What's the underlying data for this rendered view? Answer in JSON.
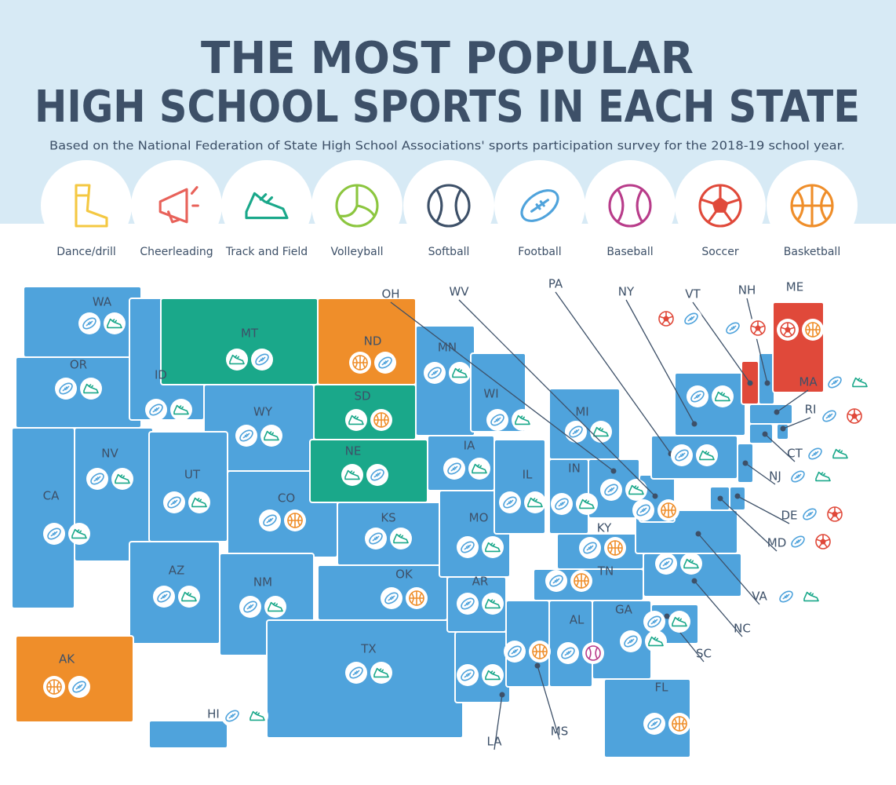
{
  "title": [
    "THE MOST POPULAR",
    "HIGH SCHOOL SPORTS IN EACH STATE"
  ],
  "subtitle": "Based on the National Federation of State High School Associations' sports participation survey for the 2018-19 school year.",
  "legend": [
    {
      "label": "Dance/drill",
      "color": "#f4c842"
    },
    {
      "label": "Cheerleading",
      "color": "#e8625a"
    },
    {
      "label": "Track and Field",
      "color": "#1aa88a"
    },
    {
      "label": "Volleyball",
      "color": "#8cc63f"
    },
    {
      "label": "Softball",
      "color": "#3d5068"
    },
    {
      "label": "Football",
      "color": "#4fa3dc"
    },
    {
      "label": "Baseball",
      "color": "#b83c8a"
    },
    {
      "label": "Soccer",
      "color": "#e0493a"
    },
    {
      "label": "Basketball",
      "color": "#ef8e2a"
    }
  ],
  "states": [
    {
      "label": "WA",
      "sports": [
        "Football",
        "Track and Field"
      ]
    },
    {
      "label": "OR",
      "sports": [
        "Football",
        "Track and Field"
      ]
    },
    {
      "label": "CA",
      "sports": [
        "Football",
        "Track and Field"
      ]
    },
    {
      "label": "NV",
      "sports": [
        "Football",
        "Track and Field"
      ]
    },
    {
      "label": "ID",
      "sports": [
        "Football",
        "Track and Field"
      ]
    },
    {
      "label": "MT",
      "sports": [
        "Track and Field",
        "Football"
      ]
    },
    {
      "label": "WY",
      "sports": [
        "Football",
        "Track and Field"
      ]
    },
    {
      "label": "UT",
      "sports": [
        "Football",
        "Track and Field"
      ]
    },
    {
      "label": "AZ",
      "sports": [
        "Football",
        "Track and Field"
      ]
    },
    {
      "label": "CO",
      "sports": [
        "Football",
        "Basketball"
      ]
    },
    {
      "label": "NM",
      "sports": [
        "Football",
        "Track and Field"
      ]
    },
    {
      "label": "ND",
      "sports": [
        "Basketball",
        "Football"
      ]
    },
    {
      "label": "SD",
      "sports": [
        "Track and Field",
        "Basketball"
      ]
    },
    {
      "label": "NE",
      "sports": [
        "Track and Field",
        "Football"
      ]
    },
    {
      "label": "KS",
      "sports": [
        "Football",
        "Track and Field"
      ]
    },
    {
      "label": "OK",
      "sports": [
        "Football",
        "Basketball"
      ]
    },
    {
      "label": "TX",
      "sports": [
        "Football",
        "Track and Field"
      ]
    },
    {
      "label": "MN",
      "sports": [
        "Football",
        "Track and Field"
      ]
    },
    {
      "label": "IA",
      "sports": [
        "Football",
        "Track and Field"
      ]
    },
    {
      "label": "MO",
      "sports": [
        "Football",
        "Track and Field"
      ]
    },
    {
      "label": "AR",
      "sports": [
        "Football",
        "Track and Field"
      ]
    },
    {
      "label": "LA",
      "sports": [
        "Football",
        "Track and Field"
      ]
    },
    {
      "label": "WI",
      "sports": [
        "Football",
        "Track and Field"
      ]
    },
    {
      "label": "IL",
      "sports": [
        "Football",
        "Track and Field"
      ]
    },
    {
      "label": "MI",
      "sports": [
        "Football",
        "Track and Field"
      ]
    },
    {
      "label": "IN",
      "sports": [
        "Football",
        "Track and Field"
      ]
    },
    {
      "label": "OH",
      "sports": [
        "Football",
        "Track and Field"
      ]
    },
    {
      "label": "KY",
      "sports": [
        "Football",
        "Basketball"
      ]
    },
    {
      "label": "TN",
      "sports": [
        "Football",
        "Basketball"
      ]
    },
    {
      "label": "MS",
      "sports": [
        "Football",
        "Basketball"
      ]
    },
    {
      "label": "AL",
      "sports": [
        "Football",
        "Baseball"
      ]
    },
    {
      "label": "GA",
      "sports": [
        "Football",
        "Track and Field"
      ]
    },
    {
      "label": "FL",
      "sports": [
        "Football",
        "Basketball"
      ]
    },
    {
      "label": "SC",
      "sports": [
        "Football",
        "Track and Field"
      ]
    },
    {
      "label": "NC",
      "sports": [
        "Football",
        "Track and Field"
      ]
    },
    {
      "label": "VA",
      "sports": [
        "Football",
        "Track and Field"
      ]
    },
    {
      "label": "WV",
      "sports": [
        "Football",
        "Basketball"
      ]
    },
    {
      "label": "PA",
      "sports": [
        "Football",
        "Track and Field"
      ]
    },
    {
      "label": "NY",
      "sports": [
        "Football",
        "Track and Field"
      ]
    },
    {
      "label": "VT",
      "sports": [
        "Soccer",
        "Football"
      ]
    },
    {
      "label": "NH",
      "sports": [
        "Football",
        "Soccer"
      ]
    },
    {
      "label": "ME",
      "sports": [
        "Soccer",
        "Basketball"
      ]
    },
    {
      "label": "MA",
      "sports": [
        "Football",
        "Track and Field"
      ]
    },
    {
      "label": "RI",
      "sports": [
        "Football",
        "Soccer"
      ]
    },
    {
      "label": "CT",
      "sports": [
        "Football",
        "Track and Field"
      ]
    },
    {
      "label": "NJ",
      "sports": [
        "Football",
        "Track and Field"
      ]
    },
    {
      "label": "DE",
      "sports": [
        "Football",
        "Soccer"
      ]
    },
    {
      "label": "MD",
      "sports": [
        "Football",
        "Soccer"
      ]
    },
    {
      "label": "AK",
      "sports": [
        "Basketball",
        "Football"
      ]
    },
    {
      "label": "HI",
      "sports": [
        "Football",
        "Track and Field"
      ]
    }
  ]
}
